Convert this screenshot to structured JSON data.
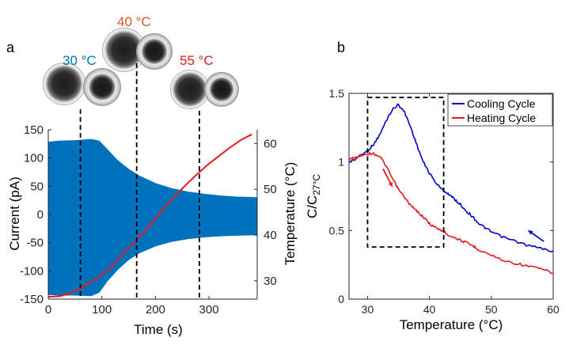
{
  "colors": {
    "current": "#0072BD",
    "temperature": "#E31A1C",
    "cooling": "#0000CC",
    "heating": "#E31A1C",
    "label30": "#0072BD",
    "label40": "#D95319",
    "label55": "#E31A1C",
    "dashed": "#000000"
  },
  "chart_data": [
    {
      "panel": "a",
      "type": "line",
      "xlabel": "Time (s)",
      "ylabel": "Current (pA)",
      "y2label": "Temperature (°C)",
      "xlim": [
        0,
        390
      ],
      "ylim": [
        -150,
        150
      ],
      "y2lim": [
        26,
        63
      ],
      "xticks": [
        "0",
        "100",
        "200",
        "300"
      ],
      "yticks": [
        "150",
        "100",
        "50",
        "0",
        "-50",
        "-100",
        "-150"
      ],
      "y2ticks": [
        "60",
        "50",
        "40",
        "30"
      ],
      "current_envelope": {
        "name": "Current",
        "t": [
          0,
          20,
          50,
          80,
          95,
          110,
          130,
          150,
          170,
          200,
          230,
          260,
          290,
          320,
          350,
          390
        ],
        "upper": [
          128,
          130,
          131,
          133,
          130,
          115,
          95,
          80,
          68,
          55,
          46,
          40,
          36,
          33,
          31,
          30
        ],
        "lower": [
          -142,
          -143,
          -143,
          -144,
          -138,
          -118,
          -97,
          -80,
          -68,
          -56,
          -48,
          -43,
          -40,
          -38,
          -37,
          -36
        ]
      },
      "temperature": {
        "name": "Temperature",
        "t": [
          0,
          20,
          40,
          60,
          80,
          100,
          120,
          140,
          160,
          180,
          200,
          220,
          240,
          260,
          280,
          300,
          320,
          340,
          360,
          380
        ],
        "values": [
          26.5,
          26.6,
          27.2,
          28.3,
          29.8,
          31.3,
          33.3,
          36.0,
          38.3,
          40.8,
          43.6,
          46.4,
          49.0,
          51.3,
          53.5,
          55.6,
          57.4,
          59.2,
          60.8,
          62.0
        ]
      },
      "markers": [
        {
          "label": "30 °C",
          "time": 60
        },
        {
          "label": "40 °C",
          "time": 165
        },
        {
          "label": "55 °C",
          "time": 282
        }
      ]
    },
    {
      "panel": "b",
      "type": "line",
      "xlabel": "Temperature (°C)",
      "ylabel_base": "C/C",
      "ylabel_sub": "27°C",
      "xlim": [
        27,
        60
      ],
      "ylim": [
        0,
        1.5
      ],
      "xticks": [
        "30",
        "40",
        "50",
        "60"
      ],
      "yticks": [
        "1.5",
        "1",
        "0.5",
        "0"
      ],
      "legend": [
        "Cooling Cycle",
        "Heating Cycle"
      ],
      "series": [
        {
          "name": "Cooling Cycle",
          "x": [
            27,
            28,
            29,
            30,
            31,
            32,
            33,
            34,
            35,
            36,
            37,
            38,
            39,
            40,
            41,
            42,
            43,
            44,
            45,
            46,
            47,
            48,
            49,
            50,
            52,
            54,
            56,
            58,
            60
          ],
          "values": [
            1.0,
            1.02,
            1.05,
            1.08,
            1.13,
            1.2,
            1.3,
            1.38,
            1.42,
            1.36,
            1.25,
            1.12,
            1.0,
            0.92,
            0.85,
            0.8,
            0.77,
            0.73,
            0.69,
            0.64,
            0.6,
            0.55,
            0.52,
            0.49,
            0.45,
            0.42,
            0.39,
            0.37,
            0.35
          ]
        },
        {
          "name": "Heating Cycle",
          "x": [
            27,
            28,
            29,
            30,
            31,
            32,
            33,
            34,
            35,
            36,
            37,
            38,
            39,
            40,
            41,
            42,
            43,
            44,
            45,
            46,
            47,
            48,
            50,
            52,
            54,
            56,
            58,
            60
          ],
          "values": [
            1.02,
            1.03,
            1.05,
            1.06,
            1.06,
            1.04,
            0.97,
            0.88,
            0.8,
            0.74,
            0.68,
            0.64,
            0.6,
            0.55,
            0.52,
            0.5,
            0.47,
            0.45,
            0.43,
            0.41,
            0.39,
            0.36,
            0.32,
            0.28,
            0.26,
            0.24,
            0.22,
            0.19
          ]
        }
      ],
      "highlight_box": {
        "x": [
          30,
          42.3
        ],
        "y": [
          0.38,
          1.47
        ]
      },
      "arrows": [
        {
          "series": "Heating Cycle",
          "from": [
            32.5,
            0.95
          ],
          "to": [
            34,
            0.82
          ]
        },
        {
          "series": "Cooling Cycle",
          "from": [
            58.5,
            0.42
          ],
          "to": [
            56,
            0.5
          ]
        }
      ]
    }
  ]
}
